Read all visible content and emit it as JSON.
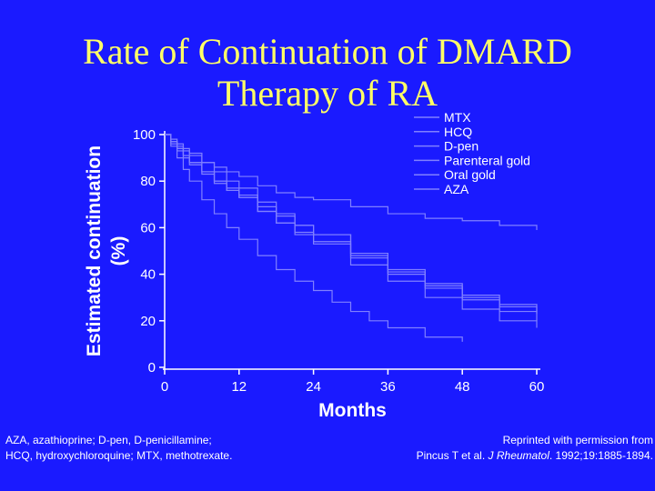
{
  "title": {
    "line1": "Rate of Continuation of DMARD",
    "line2": "Therapy of RA"
  },
  "chart_data": {
    "type": "line",
    "xlabel": "Months",
    "ylabel_line1": "Estimated continuation",
    "ylabel_line2": "(%)",
    "xlim": [
      0,
      60
    ],
    "ylim": [
      0,
      100
    ],
    "x_ticks": [
      0,
      12,
      24,
      36,
      48,
      60
    ],
    "y_ticks": [
      0,
      20,
      40,
      60,
      80,
      100
    ],
    "legend_position": "top-right",
    "series": [
      {
        "name": "MTX",
        "x": [
          0,
          1,
          2,
          3,
          4,
          6,
          8,
          10,
          12,
          15,
          18,
          21,
          24,
          30,
          36,
          42,
          48,
          54,
          60
        ],
        "values": [
          100,
          97,
          95,
          93,
          91,
          88,
          86,
          84,
          82,
          78,
          75,
          73,
          72,
          69,
          66,
          64,
          63,
          61,
          59
        ]
      },
      {
        "name": "HCQ",
        "x": [
          0,
          1,
          2,
          3,
          4,
          6,
          8,
          10,
          12,
          15,
          18,
          21,
          24,
          30,
          36,
          42,
          48,
          54,
          60
        ],
        "values": [
          100,
          96,
          93,
          90,
          87,
          83,
          79,
          76,
          73,
          67,
          62,
          57,
          53,
          44,
          37,
          30,
          25,
          20,
          17
        ]
      },
      {
        "name": "D-pen",
        "x": [
          0,
          1,
          2,
          3,
          4,
          6,
          8,
          10,
          12,
          15,
          18,
          21,
          24,
          30,
          36,
          42,
          48,
          54,
          60
        ],
        "values": [
          100,
          97,
          94,
          91,
          88,
          84,
          80,
          77,
          74,
          69,
          65,
          61,
          57,
          49,
          42,
          36,
          30,
          26,
          23
        ]
      },
      {
        "name": "Parenteral gold",
        "x": [
          0,
          1,
          2,
          3,
          4,
          6,
          8,
          10,
          12,
          15,
          18,
          21,
          24,
          30,
          36,
          42,
          48,
          54,
          60
        ],
        "values": [
          100,
          98,
          96,
          94,
          92,
          88,
          84,
          80,
          77,
          71,
          66,
          61,
          57,
          48,
          40,
          34,
          29,
          24,
          20
        ]
      },
      {
        "name": "Oral gold",
        "x": [
          0,
          1,
          2,
          3,
          4,
          6,
          8,
          10,
          12,
          15,
          18,
          21,
          24,
          27,
          30,
          33,
          36,
          42,
          48
        ],
        "values": [
          100,
          95,
          90,
          85,
          80,
          72,
          66,
          60,
          55,
          48,
          42,
          37,
          33,
          28,
          24,
          20,
          17,
          13,
          11
        ]
      },
      {
        "name": "AZA",
        "x": [
          0,
          1,
          2,
          3,
          4,
          6,
          8,
          10,
          12,
          15,
          18,
          21,
          24,
          30,
          36,
          42,
          48,
          54,
          60
        ],
        "values": [
          100,
          97,
          94,
          91,
          88,
          84,
          80,
          76,
          73,
          67,
          62,
          58,
          54,
          47,
          41,
          35,
          31,
          27,
          24
        ]
      }
    ]
  },
  "footer": {
    "abbrev_line1": "AZA, azathioprine; D-pen, D-penicillamine;",
    "abbrev_line2": "HCQ, hydroxychloroquine; MTX, methotrexate.",
    "credit_line1": "Reprinted with permission from",
    "credit_prefix": "Pincus T et al. ",
    "credit_journal": "J Rheumatol",
    "credit_suffix": ". 1992;19:1885-1894."
  },
  "colors": {
    "background": "#1a1aff",
    "title": "#ffff66",
    "axis": "#ffffff",
    "curve": "#8080ff"
  }
}
